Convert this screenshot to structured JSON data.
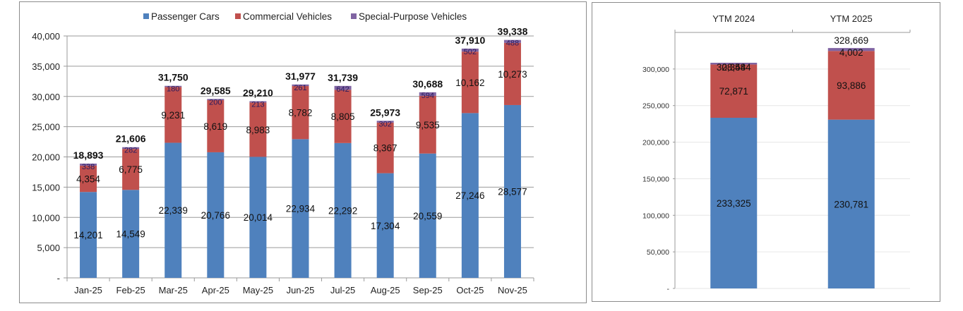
{
  "colors": {
    "passenger": "#4f81bd",
    "commercial": "#c0504d",
    "special": "#8064a2",
    "grid": "#9a9a9a",
    "grid_light": "#e6e6e6"
  },
  "chart_data": [
    {
      "type": "bar",
      "stacked": true,
      "title": "",
      "xlabel": "",
      "ylabel": "",
      "ylim": [
        0,
        40000
      ],
      "yticks": [
        0,
        5000,
        10000,
        15000,
        20000,
        25000,
        30000,
        35000,
        40000
      ],
      "ytick_labels": [
        "-",
        "5,000",
        "10,000",
        "15,000",
        "20,000",
        "25,000",
        "30,000",
        "35,000",
        "40,000"
      ],
      "grid": true,
      "legend_position": "top",
      "categories": [
        "Jan-25",
        "Feb-25",
        "Mar-25",
        "Apr-25",
        "May-25",
        "Jun-25",
        "Jul-25",
        "Aug-25",
        "Sep-25",
        "Oct-25",
        "Nov-25"
      ],
      "series": [
        {
          "name": "Passenger Cars",
          "values": [
            14201,
            14549,
            22339,
            20766,
            20014,
            22934,
            22292,
            17304,
            20559,
            27246,
            28577
          ],
          "labels": [
            "14,201",
            "14,549",
            "22,339",
            "20,766",
            "20,014",
            "22,934",
            "22,292",
            "17,304",
            "20,559",
            "27,246",
            "28,577"
          ]
        },
        {
          "name": "Commercial Vehicles",
          "values": [
            4354,
            6775,
            9231,
            8619,
            8983,
            8782,
            8805,
            8367,
            9535,
            10162,
            10273
          ],
          "labels": [
            "4,354",
            "6,775",
            "9,231",
            "8,619",
            "8,983",
            "8,782",
            "8,805",
            "8,367",
            "9,535",
            "10,162",
            "10,273"
          ]
        },
        {
          "name": "Special-Purpose Vehicles",
          "values": [
            338,
            282,
            180,
            200,
            213,
            261,
            642,
            302,
            594,
            502,
            488
          ],
          "labels": [
            "338",
            "282",
            "180",
            "200",
            "213",
            "261",
            "642",
            "302",
            "594",
            "502",
            "488"
          ]
        }
      ],
      "totals": [
        18893,
        21606,
        31750,
        29585,
        29210,
        31977,
        31739,
        25973,
        30688,
        37910,
        39338
      ],
      "total_labels": [
        "18,893",
        "21,606",
        "31,750",
        "29,585",
        "29,210",
        "31,977",
        "31,739",
        "25,973",
        "30,688",
        "37,910",
        "39,338"
      ]
    },
    {
      "type": "bar",
      "stacked": true,
      "title": "",
      "xlabel": "",
      "ylabel": "",
      "ylim": [
        0,
        350000
      ],
      "yticks": [
        0,
        50000,
        100000,
        150000,
        200000,
        250000,
        300000
      ],
      "ytick_labels": [
        "-",
        "50,000",
        "100,000",
        "150,000",
        "200,000",
        "250,000",
        "300,000"
      ],
      "grid": true,
      "x_axis_position": "top",
      "categories": [
        "YTM 2024",
        "YTM 2025"
      ],
      "series": [
        {
          "name": "Passenger Cars",
          "values": [
            233325,
            230781
          ],
          "labels": [
            "233,325",
            "230,781"
          ]
        },
        {
          "name": "Commercial Vehicles",
          "values": [
            72871,
            93886
          ],
          "labels": [
            "72,871",
            "93,886"
          ]
        },
        {
          "name": "Special-Purpose Vehicles",
          "values": [
            2348,
            4002
          ],
          "labels": [
            "2,348",
            "4,002"
          ]
        }
      ],
      "totals": [
        308544,
        328669
      ],
      "total_labels": [
        "308,544",
        "328,669"
      ]
    }
  ]
}
